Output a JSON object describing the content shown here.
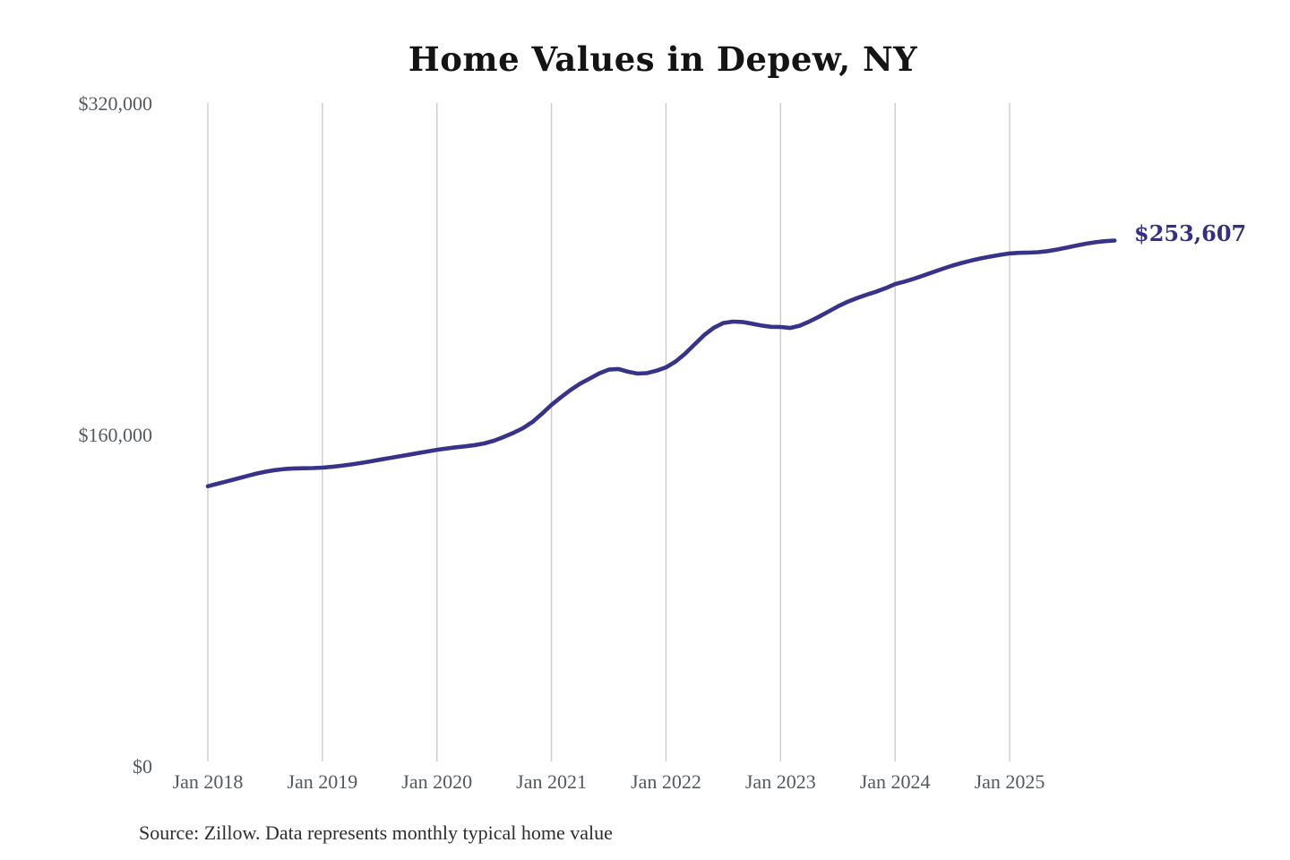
{
  "chart": {
    "end_label": "$253,607",
    "source_note": "Source: Zillow. Data represents monthly typical home value",
    "colors": {
      "line": "#37338a",
      "grid": "#cbcbcb",
      "axis_text": "#55595e",
      "title_text": "#141414",
      "end_label_text": "#333082",
      "source_text": "#2e2e2e",
      "background": "#ffffff"
    }
  },
  "chart_data": {
    "type": "line",
    "title": "Home Values in Depew, NY",
    "xlabel": "",
    "ylabel": "",
    "frequency": "monthly",
    "x_start": "Jan 2018",
    "x_end": "Dec 2025",
    "ylim": [
      0,
      320000
    ],
    "grid": "vertical-only",
    "legend_position": "none",
    "x_tick_labels": [
      "Jan 2018",
      "Jan 2019",
      "Jan 2020",
      "Jan 2021",
      "Jan 2022",
      "Jan 2023",
      "Jan 2024",
      "Jan 2025"
    ],
    "y_ticks": [
      {
        "value": 0,
        "label": "$0"
      },
      {
        "value": 160000,
        "label": "$160,000"
      },
      {
        "value": 320000,
        "label": "$320,000"
      }
    ],
    "end_annotation": {
      "text": "$253,607",
      "value": 253607
    },
    "series": [
      {
        "name": "Monthly typical home value",
        "values": [
          135000,
          136200,
          137400,
          138600,
          139800,
          141000,
          142000,
          142800,
          143300,
          143600,
          143700,
          143800,
          144000,
          144400,
          144900,
          145500,
          146200,
          147000,
          147800,
          148600,
          149400,
          150200,
          151000,
          151800,
          152600,
          153200,
          153800,
          154300,
          154900,
          155700,
          157000,
          158800,
          160800,
          163000,
          166000,
          170000,
          174300,
          178000,
          181500,
          184500,
          187000,
          189500,
          191300,
          191600,
          190300,
          189400,
          189600,
          190800,
          192400,
          195200,
          199000,
          203500,
          208000,
          211500,
          213800,
          214500,
          214300,
          213500,
          212600,
          212000,
          211900,
          211400,
          212500,
          214500,
          216800,
          219300,
          221800,
          224000,
          225800,
          227400,
          228900,
          230600,
          232600,
          233800,
          235200,
          236800,
          238400,
          240000,
          241500,
          242800,
          244000,
          245000,
          245900,
          246700,
          247400,
          247700,
          247800,
          248000,
          248500,
          249300,
          250200,
          251200,
          252100,
          252800,
          253300,
          253607
        ]
      }
    ]
  }
}
